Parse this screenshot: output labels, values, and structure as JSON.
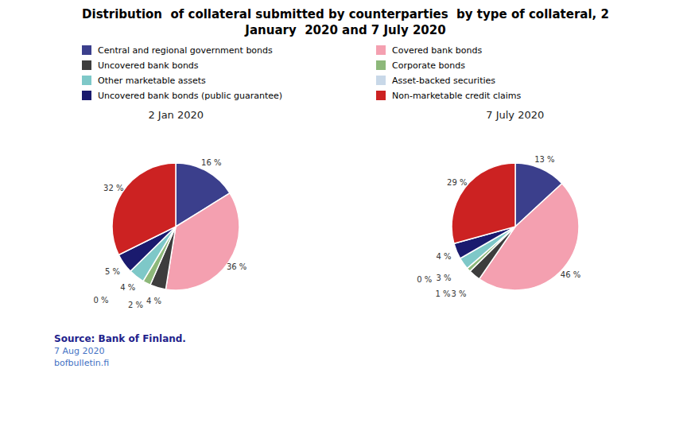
{
  "chart_data": {
    "type": "pie",
    "title": "Distribution  of collateral submitted by counterparties  by type of collateral, 2\nJanuary  2020 and 7 July 2020",
    "categories": [
      "Central and regional government bonds",
      "Covered bank bonds",
      "Uncovered bank bonds",
      "Corporate bonds",
      "Other marketable assets",
      "Asset-backed securities",
      "Uncovered bank bonds (public guarantee)",
      "Non-marketable credit claims"
    ],
    "colors": [
      "#3B3F8C",
      "#F4A0B0",
      "#3D3D3D",
      "#8DB87A",
      "#7EC8C8",
      "#C8D8E8",
      "#1A1A6E",
      "#CC2222"
    ],
    "series": [
      {
        "name": "2 Jan 2020",
        "values": [
          16,
          36,
          4,
          2,
          4,
          0,
          5,
          32
        ],
        "value_labels": [
          "16 %",
          "36 %",
          "4 %",
          "2 %",
          "4 %",
          "0 %",
          "5 %",
          "32 %"
        ]
      },
      {
        "name": "7 July 2020",
        "values": [
          13,
          46,
          3,
          1,
          3,
          0,
          4,
          29
        ],
        "value_labels": [
          "13 %",
          "46 %",
          "3 %",
          "1 %",
          "3 %",
          "0 %",
          "4 %",
          "29 %"
        ]
      }
    ],
    "data_labels": true,
    "legend": "top",
    "annotations": [
      {
        "text": "Source: Bank of Finland.",
        "color": "#1F1F8C"
      },
      {
        "text": "7 Aug 2020",
        "color": "#4472C4"
      },
      {
        "text": "bofbulletin.fi",
        "color": "#4472C4"
      }
    ]
  }
}
